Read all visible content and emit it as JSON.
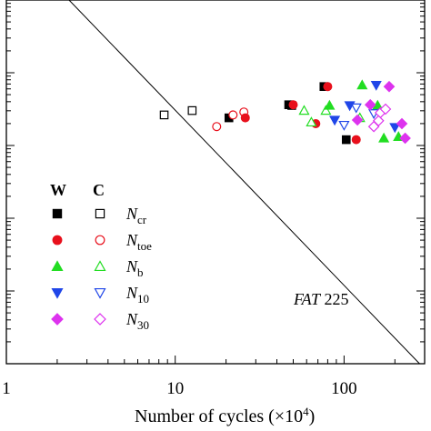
{
  "chart_data": {
    "type": "scatter",
    "title": "",
    "xlabel": "Number of cycles (×10",
    "xlabel_sup": "4",
    "xlabel_end": ")",
    "ylabel": "",
    "x_scale": "log",
    "xlim": [
      1,
      300
    ],
    "y_scale": "log",
    "ylim_exponent": [
      -5.0,
      0.0
    ],
    "grid": false,
    "legend_position": "bottom-left",
    "x_ticks": [
      {
        "value": 1,
        "label": "1"
      },
      {
        "value": 10,
        "label": "10"
      },
      {
        "value": 100,
        "label": "100"
      }
    ],
    "legend_headers": [
      "W",
      "C"
    ],
    "series": [
      {
        "key": "Ncr",
        "name_main": "N",
        "name_sub": "cr",
        "color": "#000000",
        "marker": "square",
        "filled": [
          [
            20.8,
            -1.62
          ],
          [
            47,
            -1.44
          ],
          [
            76,
            -1.19
          ],
          [
            103,
            -1.92
          ]
        ],
        "open": [
          [
            8.6,
            -1.58
          ],
          [
            12.6,
            -1.52
          ],
          [
            49,
            -1.45
          ]
        ]
      },
      {
        "key": "Ntoe",
        "name_main": "N",
        "name_sub": "toe",
        "color": "#e8101c",
        "marker": "circle",
        "filled": [
          [
            26,
            -1.62
          ],
          [
            50,
            -1.44
          ],
          [
            68,
            -1.7
          ],
          [
            80,
            -1.19
          ],
          [
            118,
            -1.92
          ]
        ],
        "open": [
          [
            17.6,
            -1.74
          ],
          [
            22,
            -1.58
          ],
          [
            25.5,
            -1.54
          ]
        ]
      },
      {
        "key": "Nb",
        "name_main": "N",
        "name_sub": "b",
        "color": "#22dd22",
        "marker": "triangle-up",
        "filled": [
          [
            82,
            -1.45
          ],
          [
            128,
            -1.17
          ],
          [
            158,
            -1.45
          ],
          [
            172,
            -1.9
          ],
          [
            210,
            -1.88
          ]
        ],
        "open": [
          [
            58,
            -1.52
          ],
          [
            64,
            -1.68
          ],
          [
            78,
            -1.52
          ],
          [
            124,
            -1.62
          ]
        ]
      },
      {
        "key": "N10",
        "name_main": "N",
        "name_sub": "10",
        "color": "#2046e8",
        "marker": "triangle-down",
        "filled": [
          [
            88,
            -1.65
          ],
          [
            108,
            -1.45
          ],
          [
            155,
            -1.17
          ],
          [
            200,
            -1.75
          ]
        ],
        "open": [
          [
            100,
            -1.72
          ],
          [
            118,
            -1.48
          ],
          [
            150,
            -1.56
          ]
        ]
      },
      {
        "key": "N30",
        "name_main": "N",
        "name_sub": "30",
        "color": "#dd33ee",
        "marker": "diamond",
        "filled": [
          [
            120,
            -1.65
          ],
          [
            143,
            -1.44
          ],
          [
            185,
            -1.19
          ],
          [
            220,
            -1.7
          ],
          [
            230,
            -1.9
          ]
        ],
        "open": [
          [
            150,
            -1.74
          ],
          [
            164,
            -1.55
          ],
          [
            176,
            -1.5
          ],
          [
            160,
            -1.66
          ]
        ]
      }
    ],
    "reference_line": {
      "label_italic": "FAT",
      "label_rest": " 225",
      "points": [
        [
          2.35,
          0.0
        ],
        [
          280,
          -5.0
        ]
      ]
    }
  }
}
